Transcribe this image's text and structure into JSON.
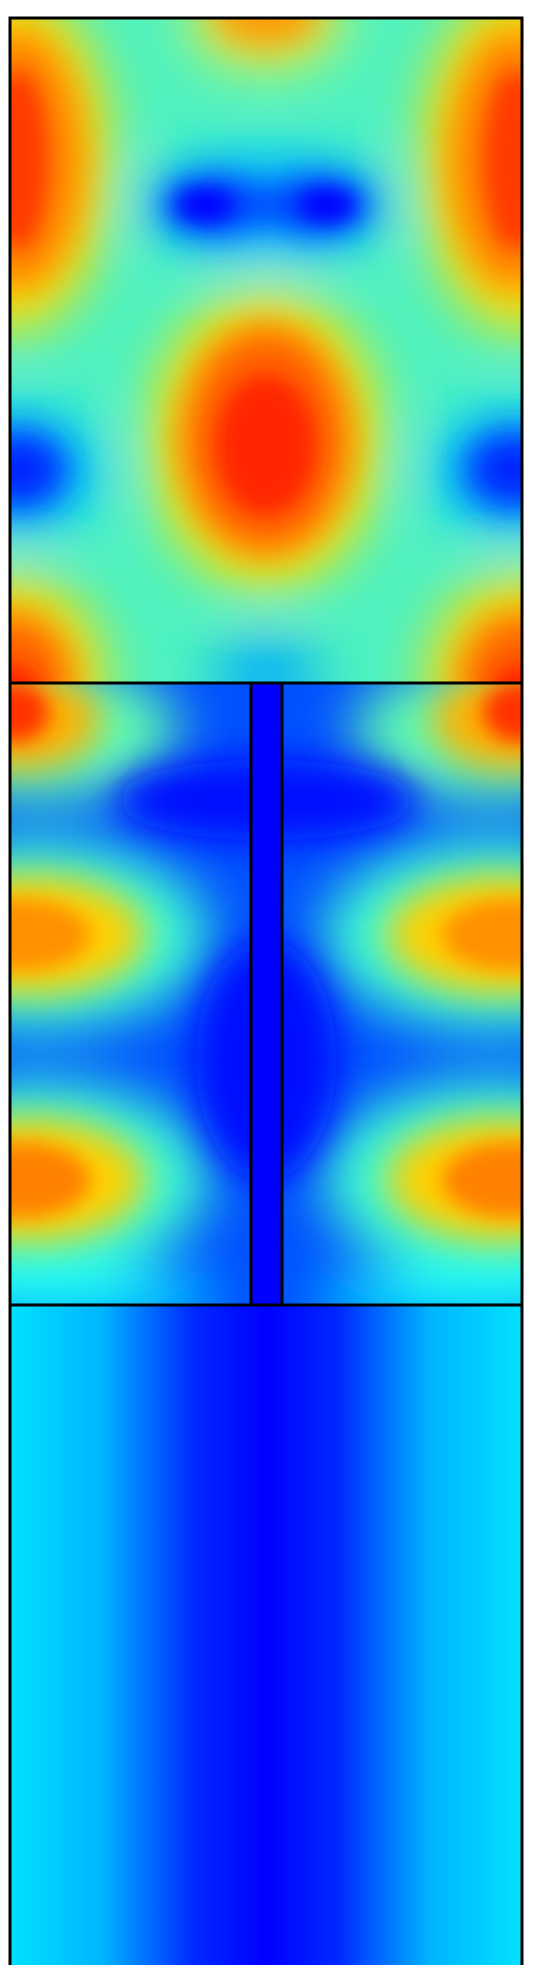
{
  "figure": {
    "type": "field-heatmap",
    "colormap": [
      "#0000ff",
      "#00e5ff",
      "#ffff00",
      "#ff2000"
    ],
    "regions": [
      "upper-chamber",
      "slit-region",
      "lower-channel"
    ],
    "background": "#ffffff",
    "outline_color": "#000000",
    "insert_fill": "#0000ff"
  }
}
